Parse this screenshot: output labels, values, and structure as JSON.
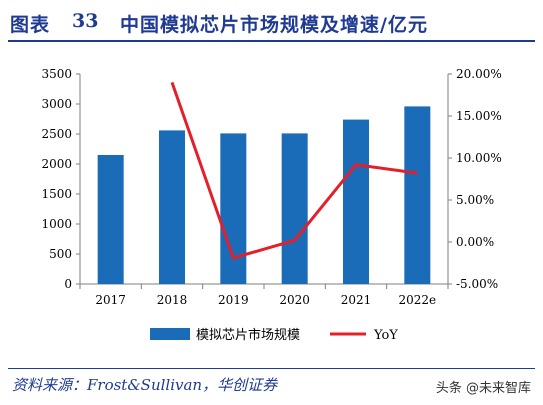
{
  "header": {
    "label": "图表",
    "number": "33",
    "title": "中国模拟芯片市场规模及增速/亿元"
  },
  "source": "资料来源：Frost&Sullivan，华创证券",
  "watermark": "头条 @未来智库",
  "colors": {
    "bar": "#1a6bb8",
    "line": "#e3202a",
    "title": "#1f3a93"
  },
  "chart_data": {
    "type": "bar",
    "categories": [
      "2017",
      "2018",
      "2019",
      "2020",
      "2021",
      "2022e"
    ],
    "series": [
      {
        "name": "模拟芯片市场规模",
        "type": "bar",
        "axis": "left",
        "values": [
          2150,
          2560,
          2510,
          2510,
          2740,
          2960
        ]
      },
      {
        "name": "YoY",
        "type": "line",
        "axis": "right",
        "values": [
          null,
          19.0,
          -1.9,
          0.2,
          9.2,
          8.2
        ]
      }
    ],
    "ylim_left": [
      0,
      3500
    ],
    "yticks_left": [
      "0",
      "500",
      "1000",
      "1500",
      "2000",
      "2500",
      "3000",
      "3500"
    ],
    "ylim_right": [
      -5,
      20
    ],
    "yticks_right": [
      "-5.00%",
      "0.00%",
      "5.00%",
      "10.00%",
      "15.00%",
      "20.00%"
    ],
    "legend_position": "bottom",
    "grid": false
  }
}
